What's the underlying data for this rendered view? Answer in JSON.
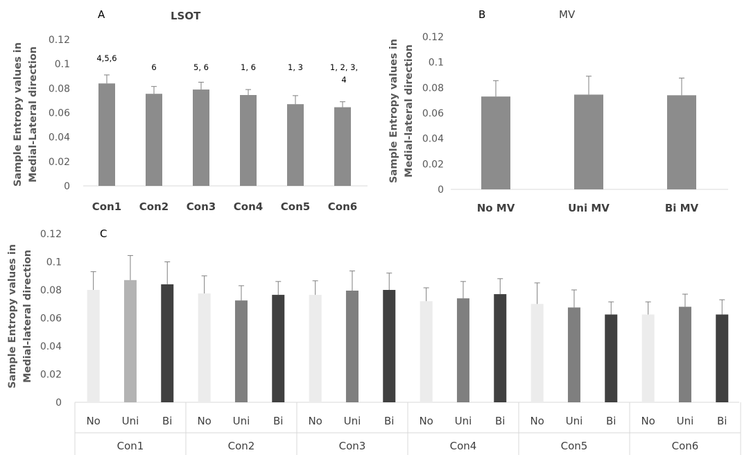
{
  "chart_data": [
    {
      "panel": "A",
      "type": "bar",
      "title": "LSOT",
      "ylabel_lines": [
        "Sample Entropy values in",
        "Medial-Lateral direction"
      ],
      "categories": [
        "Con1",
        "Con2",
        "Con3",
        "Con4",
        "Con5",
        "Con6"
      ],
      "values": [
        0.084,
        0.0755,
        0.079,
        0.0745,
        0.067,
        0.0645
      ],
      "errors": [
        0.007,
        0.006,
        0.006,
        0.0045,
        0.007,
        0.0045
      ],
      "annotations": [
        [
          "4,5,6"
        ],
        [
          "6"
        ],
        [
          "5, 6"
        ],
        [
          "1, 6"
        ],
        [
          "1, 3"
        ],
        [
          "1, 2, 3,",
          "4"
        ]
      ],
      "yticks": [
        "0",
        "0.02",
        "0.04",
        "0.06",
        "0.08",
        "0.1",
        "0.12"
      ],
      "ylim": [
        0,
        0.12
      ],
      "color": "#8c8c8c",
      "grid": false
    },
    {
      "panel": "B",
      "type": "bar",
      "title": "MV",
      "ylabel_lines": [
        "Sample Entropy values in",
        "Medial-lateral direction"
      ],
      "categories": [
        "No MV",
        "Uni MV",
        "Bi MV"
      ],
      "values": [
        0.073,
        0.0745,
        0.074
      ],
      "errors": [
        0.0125,
        0.0145,
        0.0135
      ],
      "yticks": [
        "0",
        "0.02",
        "0.04",
        "0.06",
        "0.08",
        "0.1",
        "0.12"
      ],
      "ylim": [
        0,
        0.12
      ],
      "color": "#8c8c8c",
      "grid": false
    },
    {
      "panel": "C",
      "type": "bar",
      "title": "",
      "ylabel_lines": [
        "Sample Entropy values in",
        "Medial-lateral direction"
      ],
      "groups": [
        "Con1",
        "Con2",
        "Con3",
        "Con4",
        "Con5",
        "Con6"
      ],
      "subcategories": [
        "No",
        "Uni",
        "Bi"
      ],
      "series": [
        {
          "values": [
            0.08,
            0.0775,
            0.0765,
            0.072,
            0.07,
            0.0625
          ],
          "errors": [
            0.013,
            0.0125,
            0.01,
            0.0095,
            0.015,
            0.009
          ],
          "color": "#ececec"
        },
        {
          "values": [
            0.087,
            0.0725,
            0.0795,
            0.074,
            0.0675,
            0.068
          ],
          "errors": [
            0.0175,
            0.0105,
            0.014,
            0.012,
            0.0125,
            0.009
          ],
          "color_first": "#b3b3b3",
          "color": "#7f7f7f"
        },
        {
          "values": [
            0.084,
            0.0765,
            0.08,
            0.077,
            0.0625,
            0.0625
          ],
          "errors": [
            0.016,
            0.0095,
            0.012,
            0.011,
            0.009,
            0.0105
          ],
          "color": "#404040"
        }
      ],
      "yticks": [
        "0",
        "0.02",
        "0.04",
        "0.06",
        "0.08",
        "0.1",
        "0.12"
      ],
      "ylim": [
        0,
        0.12
      ],
      "grid": false
    }
  ]
}
